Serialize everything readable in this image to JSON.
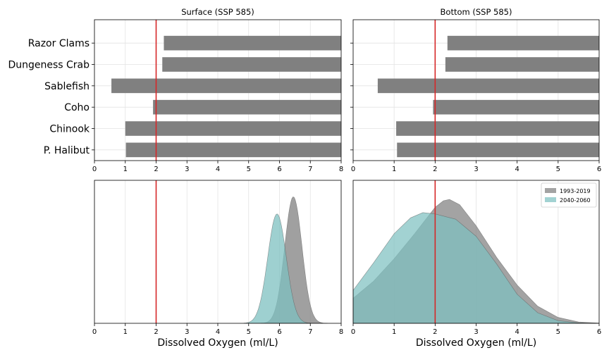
{
  "chart_data": [
    {
      "id": "surface-bars",
      "type": "bar",
      "orientation": "horizontal",
      "title": "Surface (SSP 585)",
      "categories": [
        "Razor Clams",
        "Dungeness Crab",
        "Sablefish",
        "Coho",
        "Chinook",
        "P. Halibut"
      ],
      "ranges": [
        [
          2.25,
          8
        ],
        [
          2.2,
          8
        ],
        [
          0.55,
          8
        ],
        [
          1.9,
          8
        ],
        [
          1.0,
          8
        ],
        [
          1.02,
          8
        ]
      ],
      "xlim": [
        0,
        8
      ],
      "xticks": [
        "0",
        "1",
        "2",
        "3",
        "4",
        "5",
        "6",
        "7",
        "8"
      ],
      "threshold": 2,
      "grid": true,
      "color": "#808080"
    },
    {
      "id": "bottom-bars",
      "type": "bar",
      "orientation": "horizontal",
      "title": "Bottom (SSP 585)",
      "categories": [
        "Razor Clams",
        "Dungeness Crab",
        "Sablefish",
        "Coho",
        "Chinook",
        "P. Halibut"
      ],
      "ranges": [
        [
          2.3,
          6
        ],
        [
          2.25,
          6
        ],
        [
          0.6,
          6
        ],
        [
          1.95,
          6
        ],
        [
          1.05,
          6
        ],
        [
          1.07,
          6
        ]
      ],
      "xlim": [
        0,
        6
      ],
      "xticks": [
        "0",
        "1",
        "2",
        "3",
        "4",
        "5",
        "6"
      ],
      "threshold": 2,
      "grid": true,
      "color": "#808080"
    },
    {
      "id": "surface-density",
      "type": "area",
      "xlabel": "Dissolved Oxygen (ml/L)",
      "xlim": [
        0,
        8
      ],
      "xticks": [
        "0",
        "1",
        "2",
        "3",
        "4",
        "5",
        "6",
        "7",
        "8"
      ],
      "threshold": 2,
      "grid": true,
      "series": [
        {
          "key": "hist",
          "color": "#808080",
          "opacity": 0.75,
          "mean": 6.45,
          "sd": 0.28,
          "peak": 0.96,
          "range": [
            5.4,
            7.55
          ]
        },
        {
          "key": "proj",
          "color": "#7ec0c0",
          "opacity": 0.75,
          "mean": 5.92,
          "sd": 0.3,
          "peak": 0.83,
          "range": [
            4.85,
            7.0
          ]
        }
      ]
    },
    {
      "id": "bottom-density",
      "type": "area",
      "xlabel": "Dissolved Oxygen (ml/L)",
      "xlim": [
        0,
        6
      ],
      "xticks": [
        "0",
        "1",
        "2",
        "3",
        "4",
        "5",
        "6"
      ],
      "threshold": 2,
      "grid": true,
      "legend": {
        "placement": "top-right",
        "entries": [
          "1993-2019",
          "2040-2060"
        ]
      },
      "series": [
        {
          "key": "hist",
          "name": "1993-2019",
          "color": "#808080",
          "opacity": 0.72,
          "points": [
            [
              0,
              0.19
            ],
            [
              0.5,
              0.32
            ],
            [
              1,
              0.49
            ],
            [
              1.5,
              0.68
            ],
            [
              2,
              0.88
            ],
            [
              2.2,
              0.93
            ],
            [
              2.35,
              0.94
            ],
            [
              2.6,
              0.9
            ],
            [
              3,
              0.74
            ],
            [
              3.5,
              0.5
            ],
            [
              4,
              0.29
            ],
            [
              4.5,
              0.13
            ],
            [
              5,
              0.045
            ],
            [
              5.5,
              0.01
            ],
            [
              6,
              0.002
            ]
          ]
        },
        {
          "key": "proj",
          "name": "2040-2060",
          "color": "#7ec0c0",
          "opacity": 0.72,
          "points": [
            [
              0,
              0.25
            ],
            [
              0.5,
              0.46
            ],
            [
              1,
              0.68
            ],
            [
              1.4,
              0.8
            ],
            [
              1.7,
              0.84
            ],
            [
              2,
              0.83
            ],
            [
              2.5,
              0.79
            ],
            [
              3,
              0.66
            ],
            [
              3.5,
              0.45
            ],
            [
              4,
              0.22
            ],
            [
              4.5,
              0.08
            ],
            [
              5,
              0.02
            ],
            [
              5.5,
              0.004
            ],
            [
              6,
              0.0
            ]
          ]
        }
      ]
    }
  ]
}
